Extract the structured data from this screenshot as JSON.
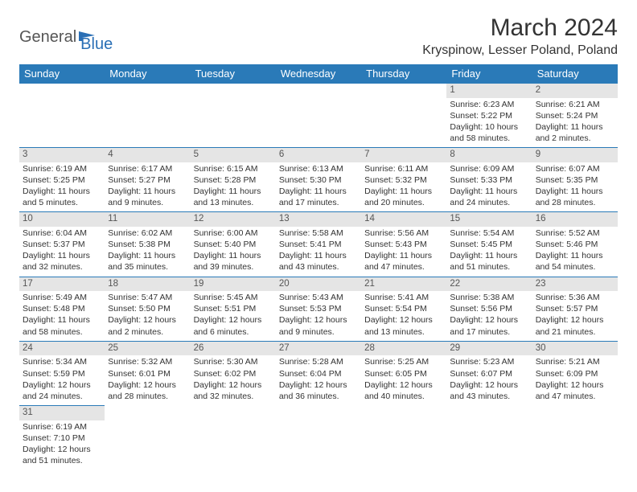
{
  "brand": {
    "part1": "General",
    "part2": "Blue"
  },
  "title": "March 2024",
  "location": "Kryspinow, Lesser Poland, Poland",
  "headers": [
    "Sunday",
    "Monday",
    "Tuesday",
    "Wednesday",
    "Thursday",
    "Friday",
    "Saturday"
  ],
  "colors": {
    "header_bg": "#2a7ab8",
    "header_text": "#ffffff",
    "daynum_bg": "#e5e5e5",
    "border": "#2a7ab8",
    "text": "#333333",
    "brand_blue": "#2a6fb5"
  },
  "weeks": [
    [
      null,
      null,
      null,
      null,
      null,
      {
        "n": "1",
        "sr": "Sunrise: 6:23 AM",
        "ss": "Sunset: 5:22 PM",
        "d1": "Daylight: 10 hours",
        "d2": "and 58 minutes."
      },
      {
        "n": "2",
        "sr": "Sunrise: 6:21 AM",
        "ss": "Sunset: 5:24 PM",
        "d1": "Daylight: 11 hours",
        "d2": "and 2 minutes."
      }
    ],
    [
      {
        "n": "3",
        "sr": "Sunrise: 6:19 AM",
        "ss": "Sunset: 5:25 PM",
        "d1": "Daylight: 11 hours",
        "d2": "and 5 minutes."
      },
      {
        "n": "4",
        "sr": "Sunrise: 6:17 AM",
        "ss": "Sunset: 5:27 PM",
        "d1": "Daylight: 11 hours",
        "d2": "and 9 minutes."
      },
      {
        "n": "5",
        "sr": "Sunrise: 6:15 AM",
        "ss": "Sunset: 5:28 PM",
        "d1": "Daylight: 11 hours",
        "d2": "and 13 minutes."
      },
      {
        "n": "6",
        "sr": "Sunrise: 6:13 AM",
        "ss": "Sunset: 5:30 PM",
        "d1": "Daylight: 11 hours",
        "d2": "and 17 minutes."
      },
      {
        "n": "7",
        "sr": "Sunrise: 6:11 AM",
        "ss": "Sunset: 5:32 PM",
        "d1": "Daylight: 11 hours",
        "d2": "and 20 minutes."
      },
      {
        "n": "8",
        "sr": "Sunrise: 6:09 AM",
        "ss": "Sunset: 5:33 PM",
        "d1": "Daylight: 11 hours",
        "d2": "and 24 minutes."
      },
      {
        "n": "9",
        "sr": "Sunrise: 6:07 AM",
        "ss": "Sunset: 5:35 PM",
        "d1": "Daylight: 11 hours",
        "d2": "and 28 minutes."
      }
    ],
    [
      {
        "n": "10",
        "sr": "Sunrise: 6:04 AM",
        "ss": "Sunset: 5:37 PM",
        "d1": "Daylight: 11 hours",
        "d2": "and 32 minutes."
      },
      {
        "n": "11",
        "sr": "Sunrise: 6:02 AM",
        "ss": "Sunset: 5:38 PM",
        "d1": "Daylight: 11 hours",
        "d2": "and 35 minutes."
      },
      {
        "n": "12",
        "sr": "Sunrise: 6:00 AM",
        "ss": "Sunset: 5:40 PM",
        "d1": "Daylight: 11 hours",
        "d2": "and 39 minutes."
      },
      {
        "n": "13",
        "sr": "Sunrise: 5:58 AM",
        "ss": "Sunset: 5:41 PM",
        "d1": "Daylight: 11 hours",
        "d2": "and 43 minutes."
      },
      {
        "n": "14",
        "sr": "Sunrise: 5:56 AM",
        "ss": "Sunset: 5:43 PM",
        "d1": "Daylight: 11 hours",
        "d2": "and 47 minutes."
      },
      {
        "n": "15",
        "sr": "Sunrise: 5:54 AM",
        "ss": "Sunset: 5:45 PM",
        "d1": "Daylight: 11 hours",
        "d2": "and 51 minutes."
      },
      {
        "n": "16",
        "sr": "Sunrise: 5:52 AM",
        "ss": "Sunset: 5:46 PM",
        "d1": "Daylight: 11 hours",
        "d2": "and 54 minutes."
      }
    ],
    [
      {
        "n": "17",
        "sr": "Sunrise: 5:49 AM",
        "ss": "Sunset: 5:48 PM",
        "d1": "Daylight: 11 hours",
        "d2": "and 58 minutes."
      },
      {
        "n": "18",
        "sr": "Sunrise: 5:47 AM",
        "ss": "Sunset: 5:50 PM",
        "d1": "Daylight: 12 hours",
        "d2": "and 2 minutes."
      },
      {
        "n": "19",
        "sr": "Sunrise: 5:45 AM",
        "ss": "Sunset: 5:51 PM",
        "d1": "Daylight: 12 hours",
        "d2": "and 6 minutes."
      },
      {
        "n": "20",
        "sr": "Sunrise: 5:43 AM",
        "ss": "Sunset: 5:53 PM",
        "d1": "Daylight: 12 hours",
        "d2": "and 9 minutes."
      },
      {
        "n": "21",
        "sr": "Sunrise: 5:41 AM",
        "ss": "Sunset: 5:54 PM",
        "d1": "Daylight: 12 hours",
        "d2": "and 13 minutes."
      },
      {
        "n": "22",
        "sr": "Sunrise: 5:38 AM",
        "ss": "Sunset: 5:56 PM",
        "d1": "Daylight: 12 hours",
        "d2": "and 17 minutes."
      },
      {
        "n": "23",
        "sr": "Sunrise: 5:36 AM",
        "ss": "Sunset: 5:57 PM",
        "d1": "Daylight: 12 hours",
        "d2": "and 21 minutes."
      }
    ],
    [
      {
        "n": "24",
        "sr": "Sunrise: 5:34 AM",
        "ss": "Sunset: 5:59 PM",
        "d1": "Daylight: 12 hours",
        "d2": "and 24 minutes."
      },
      {
        "n": "25",
        "sr": "Sunrise: 5:32 AM",
        "ss": "Sunset: 6:01 PM",
        "d1": "Daylight: 12 hours",
        "d2": "and 28 minutes."
      },
      {
        "n": "26",
        "sr": "Sunrise: 5:30 AM",
        "ss": "Sunset: 6:02 PM",
        "d1": "Daylight: 12 hours",
        "d2": "and 32 minutes."
      },
      {
        "n": "27",
        "sr": "Sunrise: 5:28 AM",
        "ss": "Sunset: 6:04 PM",
        "d1": "Daylight: 12 hours",
        "d2": "and 36 minutes."
      },
      {
        "n": "28",
        "sr": "Sunrise: 5:25 AM",
        "ss": "Sunset: 6:05 PM",
        "d1": "Daylight: 12 hours",
        "d2": "and 40 minutes."
      },
      {
        "n": "29",
        "sr": "Sunrise: 5:23 AM",
        "ss": "Sunset: 6:07 PM",
        "d1": "Daylight: 12 hours",
        "d2": "and 43 minutes."
      },
      {
        "n": "30",
        "sr": "Sunrise: 5:21 AM",
        "ss": "Sunset: 6:09 PM",
        "d1": "Daylight: 12 hours",
        "d2": "and 47 minutes."
      }
    ],
    [
      {
        "n": "31",
        "sr": "Sunrise: 6:19 AM",
        "ss": "Sunset: 7:10 PM",
        "d1": "Daylight: 12 hours",
        "d2": "and 51 minutes."
      },
      null,
      null,
      null,
      null,
      null,
      null
    ]
  ]
}
